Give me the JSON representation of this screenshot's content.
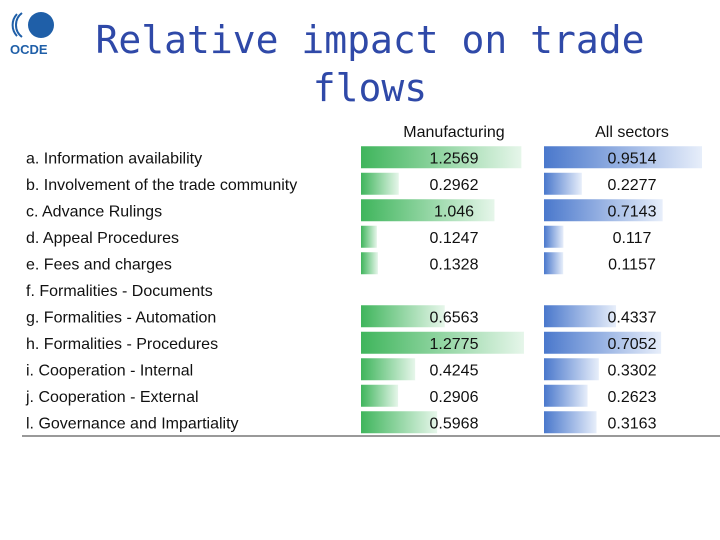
{
  "title": "Relative impact on trade flows",
  "logo_text": "OCDE",
  "colors": {
    "title": "#2f49a8",
    "manufacturing": "#3fb55c",
    "all_sectors": "#4a78cc",
    "logo": "#1f5fa8"
  },
  "chart_data": {
    "type": "table",
    "columns": [
      "Manufacturing",
      "All sectors"
    ],
    "rows": [
      {
        "label": "a. Information availability",
        "values": [
          "1.2569",
          "0.9514"
        ]
      },
      {
        "label": "b. Involvement of the trade community",
        "values": [
          "0.2962",
          "0.2277"
        ]
      },
      {
        "label": "c. Advance Rulings",
        "values": [
          "1.046",
          "0.7143"
        ]
      },
      {
        "label": "d. Appeal Procedures",
        "values": [
          "0.1247",
          "0.117"
        ]
      },
      {
        "label": "e. Fees and charges",
        "values": [
          "0.1328",
          "0.1157"
        ]
      },
      {
        "label": "f. Formalities - Documents",
        "values": [
          "",
          ""
        ]
      },
      {
        "label": "g. Formalities - Automation",
        "values": [
          "0.6563",
          "0.4337"
        ]
      },
      {
        "label": "h. Formalities - Procedures",
        "values": [
          "1.2775",
          "0.7052"
        ]
      },
      {
        "label": "i. Cooperation - Internal",
        "values": [
          "0.4245",
          "0.3302"
        ]
      },
      {
        "label": "j. Cooperation - External",
        "values": [
          "0.2906",
          "0.2623"
        ]
      },
      {
        "label": "l. Governance and Impartiality",
        "values": [
          "0.5968",
          "0.3163"
        ]
      }
    ],
    "bar_max": [
      1.2775,
      0.9514
    ]
  }
}
